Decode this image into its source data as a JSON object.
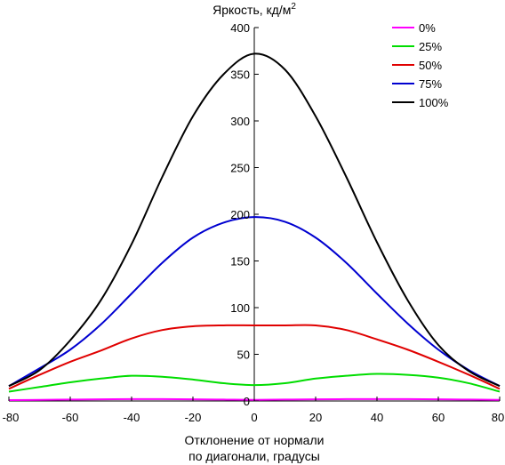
{
  "chart_data": {
    "type": "line",
    "ylabel": "Яркость, кд/м",
    "ylabel_sup": "2",
    "xlabel_lines": [
      "Отклонение от нормали",
      "по диагонали, градусы"
    ],
    "xlim": [
      -80,
      80
    ],
    "ylim": [
      0,
      400
    ],
    "x_ticks": [
      -80,
      -60,
      -40,
      -20,
      0,
      20,
      40,
      60,
      80
    ],
    "y_ticks": [
      0,
      50,
      100,
      150,
      200,
      250,
      300,
      350,
      400
    ],
    "x_tick_labels": [
      "-80",
      "-60",
      "-40",
      "-20",
      "0",
      "20",
      "40",
      "60",
      "80"
    ],
    "y_tick_labels": [
      "0",
      "50",
      "100",
      "150",
      "200",
      "250",
      "300",
      "350",
      "400"
    ],
    "grid": false,
    "legend_position": "top-right",
    "x": [
      -80,
      -70,
      -60,
      -50,
      -40,
      -30,
      -20,
      -10,
      0,
      10,
      20,
      30,
      40,
      50,
      60,
      70,
      80
    ],
    "series": [
      {
        "name": "0%",
        "color": "#ff00ff",
        "values": [
          1,
          1.2,
          1.5,
          1.8,
          2,
          2,
          1.8,
          1.5,
          1.2,
          1.5,
          1.8,
          2,
          2,
          2,
          1.8,
          1.5,
          1.2
        ]
      },
      {
        "name": "25%",
        "color": "#00dd00",
        "values": [
          10,
          15,
          20,
          24,
          27,
          26,
          23,
          19,
          17,
          19,
          24,
          27,
          29,
          28,
          25,
          19,
          10
        ]
      },
      {
        "name": "50%",
        "color": "#e00000",
        "values": [
          13,
          28,
          42,
          54,
          67,
          76,
          80,
          81,
          81,
          81,
          81,
          76,
          66,
          55,
          42,
          28,
          13
        ]
      },
      {
        "name": "75%",
        "color": "#0000d0",
        "values": [
          16,
          35,
          55,
          82,
          115,
          148,
          175,
          191,
          197,
          192,
          175,
          148,
          115,
          83,
          55,
          33,
          16
        ]
      },
      {
        "name": "100%",
        "color": "#000000",
        "values": [
          16,
          33,
          65,
          108,
          168,
          240,
          305,
          350,
          372,
          355,
          305,
          240,
          170,
          108,
          60,
          32,
          16
        ]
      }
    ]
  }
}
